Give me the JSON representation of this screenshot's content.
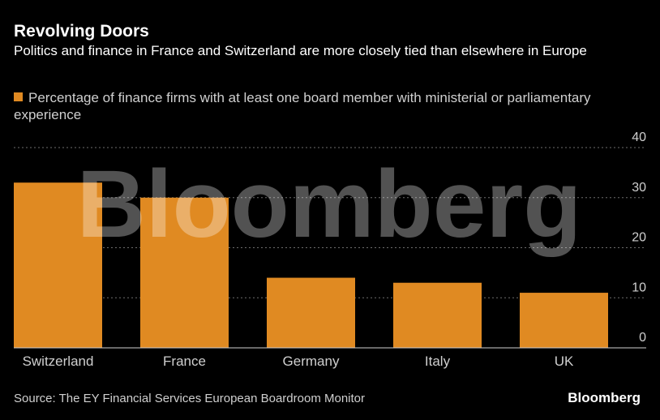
{
  "header": {
    "title": "Revolving Doors",
    "subtitle": "Politics and finance in France and Switzerland are more closely tied than elsewhere in Europe"
  },
  "legend": {
    "label": "Percentage of finance firms with at least one board member with ministerial or parliamentary experience"
  },
  "footer": {
    "source": "Source: The EY Financial Services European Boardroom Monitor",
    "logo": "Bloomberg"
  },
  "watermark": "Bloomberg",
  "colors": {
    "bar": "#e08a22",
    "background": "#000000",
    "grid": "#6e6e6e",
    "tick_text": "#cfcfcf"
  },
  "chart_data": {
    "type": "bar",
    "categories": [
      "Switzerland",
      "France",
      "Germany",
      "Italy",
      "UK"
    ],
    "series": [
      {
        "name": "Percentage of finance firms with at least one board member with ministerial or parliamentary experience",
        "values": [
          33,
          30,
          14,
          13,
          11
        ]
      }
    ],
    "ylim": [
      0,
      40
    ],
    "yticks": [
      0,
      10,
      20,
      30,
      40
    ],
    "ytick_labels": [
      "0",
      "10",
      "20",
      "30",
      "40"
    ],
    "y_axis_position": "right",
    "grid": true,
    "legend_position": "top-left"
  }
}
